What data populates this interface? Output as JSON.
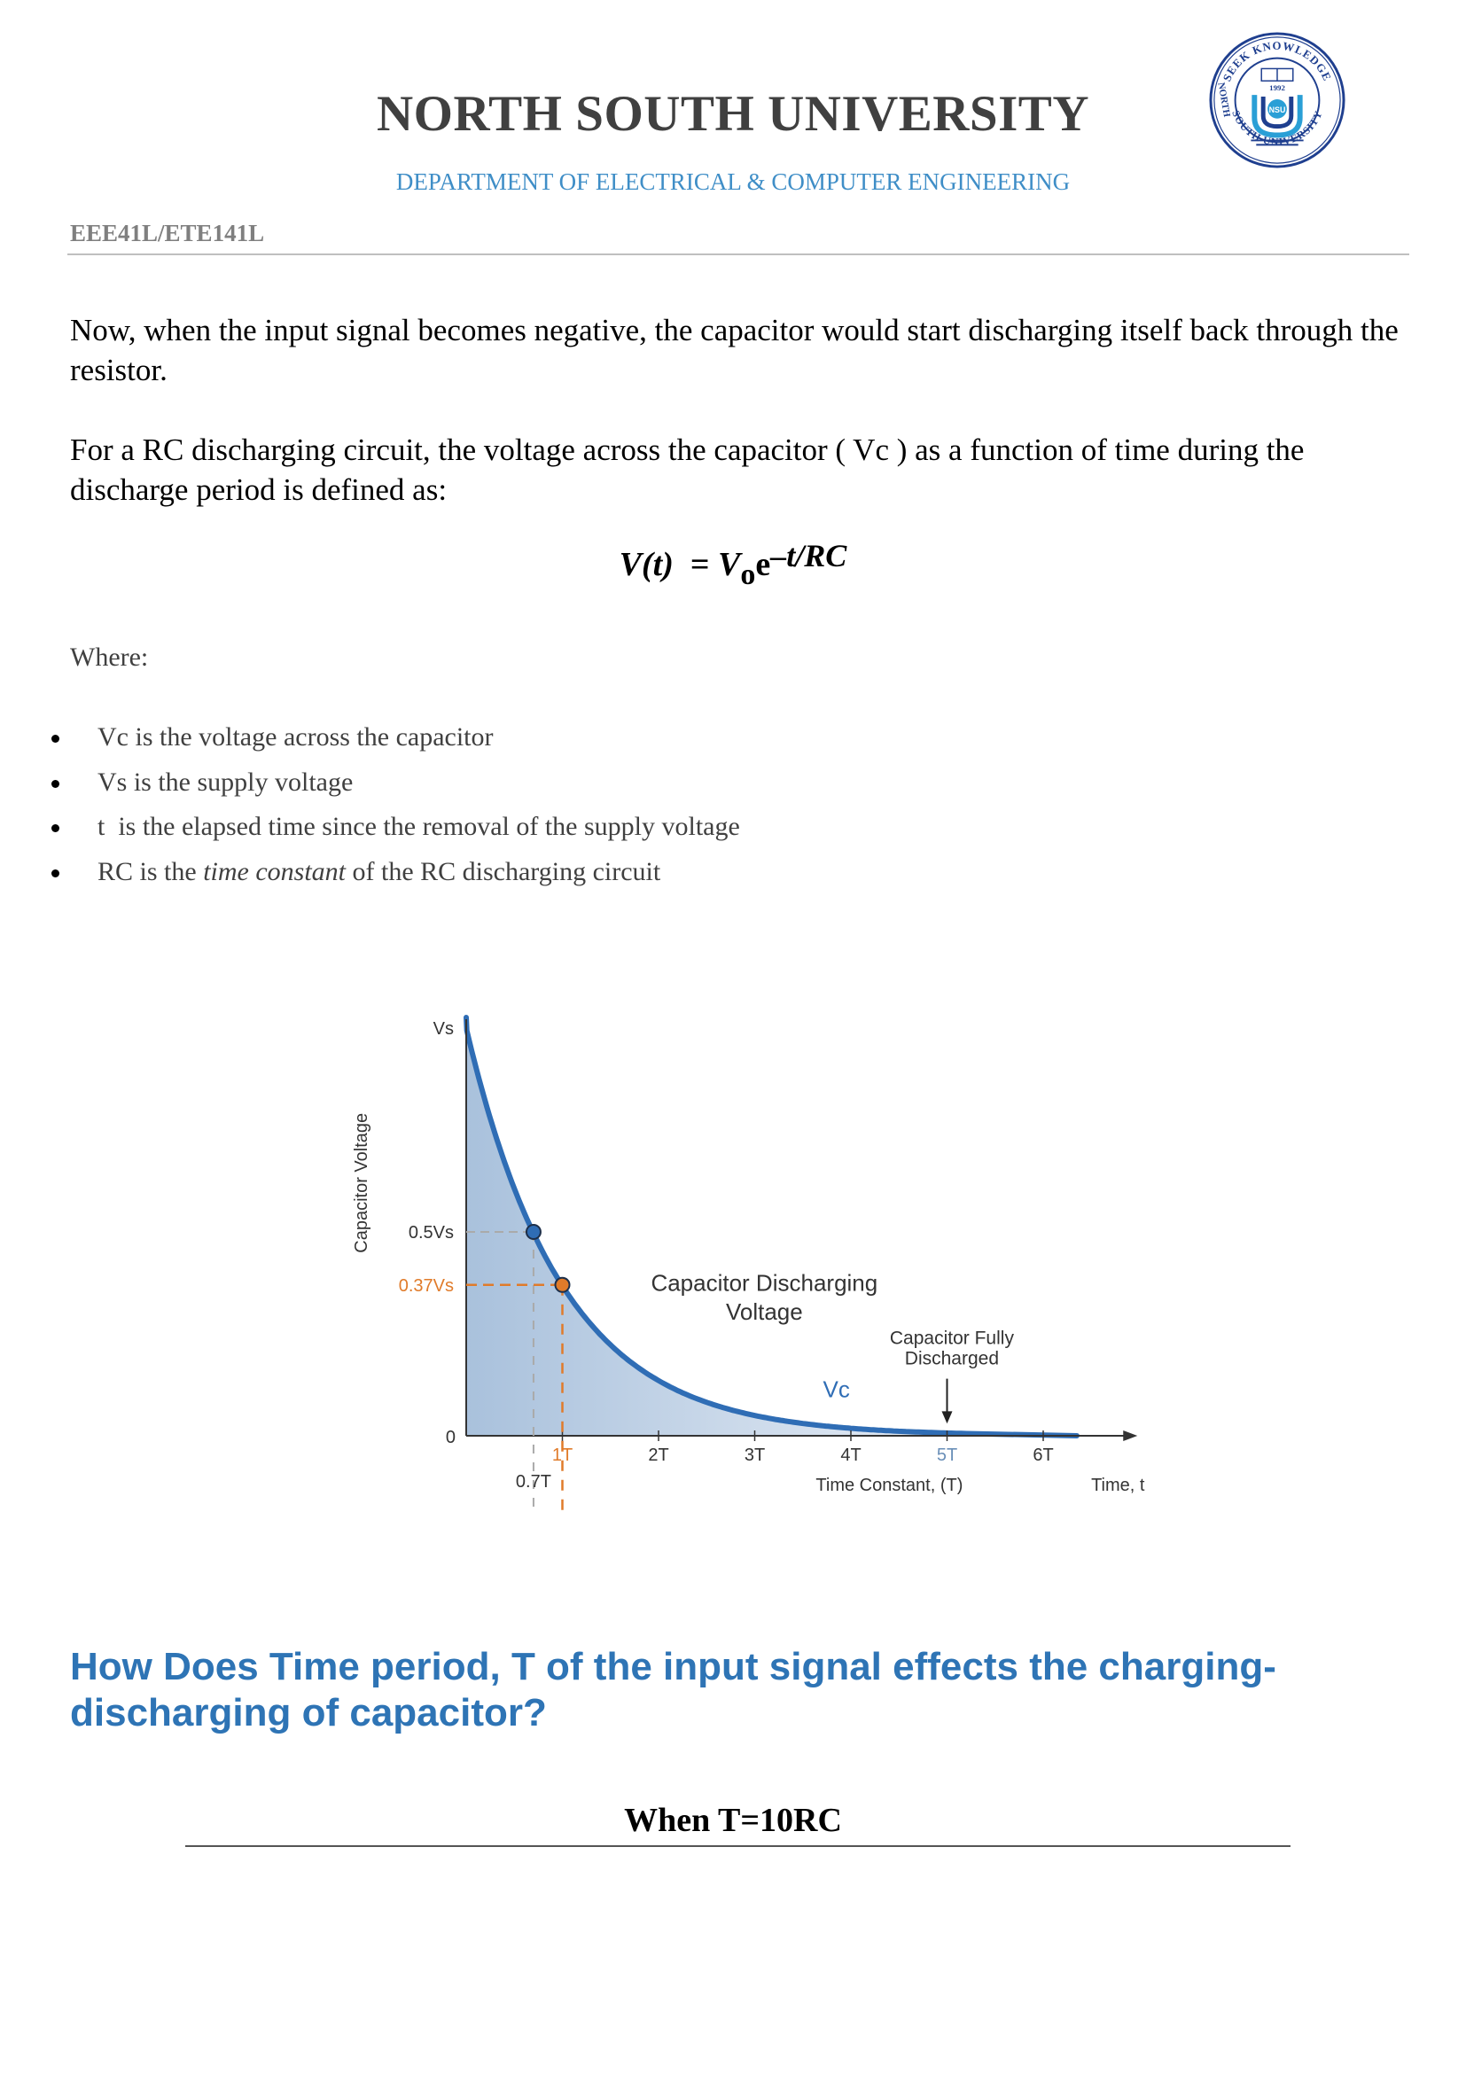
{
  "header": {
    "university": "NORTH SOUTH UNIVERSITY",
    "department": "DEPARTMENT OF ELECTRICAL & COMPUTER ENGINEERING",
    "course": "EEE41L/ETE141L",
    "logo": {
      "top_text": "SEEK KNOWLEDGE",
      "left_text": "NORTH",
      "bottom_text": "SOUTH UNIVERSITY",
      "year": "1992",
      "initials": "NSU",
      "colors": {
        "ring": "#1f3f8f",
        "inner": "#2a9fd6"
      }
    }
  },
  "body": {
    "paragraph1": "Now, when the input signal becomes negative, the capacitor would start discharging itself back through the resistor.",
    "paragraph2": "For a RC discharging circuit, the voltage across the capacitor ( Vc ) as a function of time during the discharge period is defined as:",
    "formula": {
      "lhs": "V(t)",
      "eq": "  = ",
      "v": "V",
      "sub": "o",
      "e": "e",
      "exponent": "–t/RC"
    },
    "where_label": "Where:",
    "bullets": [
      {
        "pre": "Vc is the voltage across the capacitor",
        "italic": "",
        "post": ""
      },
      {
        "pre": "Vs is the supply voltage",
        "italic": "",
        "post": ""
      },
      {
        "pre": "t  is the elapsed time since the removal of the supply voltage",
        "italic": "",
        "post": ""
      },
      {
        "pre": "RC is the ",
        "italic": "time constant",
        "post": " of the RC discharging circuit"
      }
    ]
  },
  "chart_data": {
    "type": "line",
    "title": "",
    "ylabel": "Capacitor Voltage",
    "xlabel": "Time Constant, (T)",
    "x_end_label": "Time, t",
    "xlim": [
      0,
      6.5
    ],
    "ylim": [
      0,
      1
    ],
    "x_ticks": [
      {
        "x": 1,
        "label": "1T",
        "color": "#e07b2a"
      },
      {
        "x": 2,
        "label": "2T",
        "color": "#333333"
      },
      {
        "x": 3,
        "label": "3T",
        "color": "#333333"
      },
      {
        "x": 4,
        "label": "4T",
        "color": "#333333"
      },
      {
        "x": 5,
        "label": "5T",
        "color": "#6a8fb8"
      },
      {
        "x": 6,
        "label": "6T",
        "color": "#333333"
      }
    ],
    "y_ticks": [
      {
        "y": 1,
        "label": "Vs",
        "color": "#333333"
      },
      {
        "y": 0.5,
        "label": "0.5Vs",
        "color": "#333333"
      },
      {
        "y": 0.37,
        "label": "0.37Vs",
        "color": "#e07b2a"
      },
      {
        "y": 0,
        "label": "0",
        "color": "#333333"
      }
    ],
    "series": [
      {
        "name": "Vc",
        "function": "exp(-x)",
        "color": "#2f6db5"
      }
    ],
    "markers": [
      {
        "x": 0.7,
        "y": 0.5,
        "label": "0.7T",
        "color": "#2f6db5"
      },
      {
        "x": 1,
        "y": 0.37,
        "label": "",
        "color": "#e07b2a"
      }
    ],
    "annotations": {
      "curve_label": [
        "Capacitor Discharging",
        "Voltage"
      ],
      "discharged_label": [
        "Capacitor Fully",
        "Discharged"
      ],
      "discharged_x": 5
    },
    "fill": {
      "from": "#a9c1dc",
      "to": "#e8eef6"
    }
  },
  "section": {
    "heading": "How Does Time period, T of the input signal effects the charging-discharging of capacitor?",
    "subheading": "When T=10RC"
  }
}
